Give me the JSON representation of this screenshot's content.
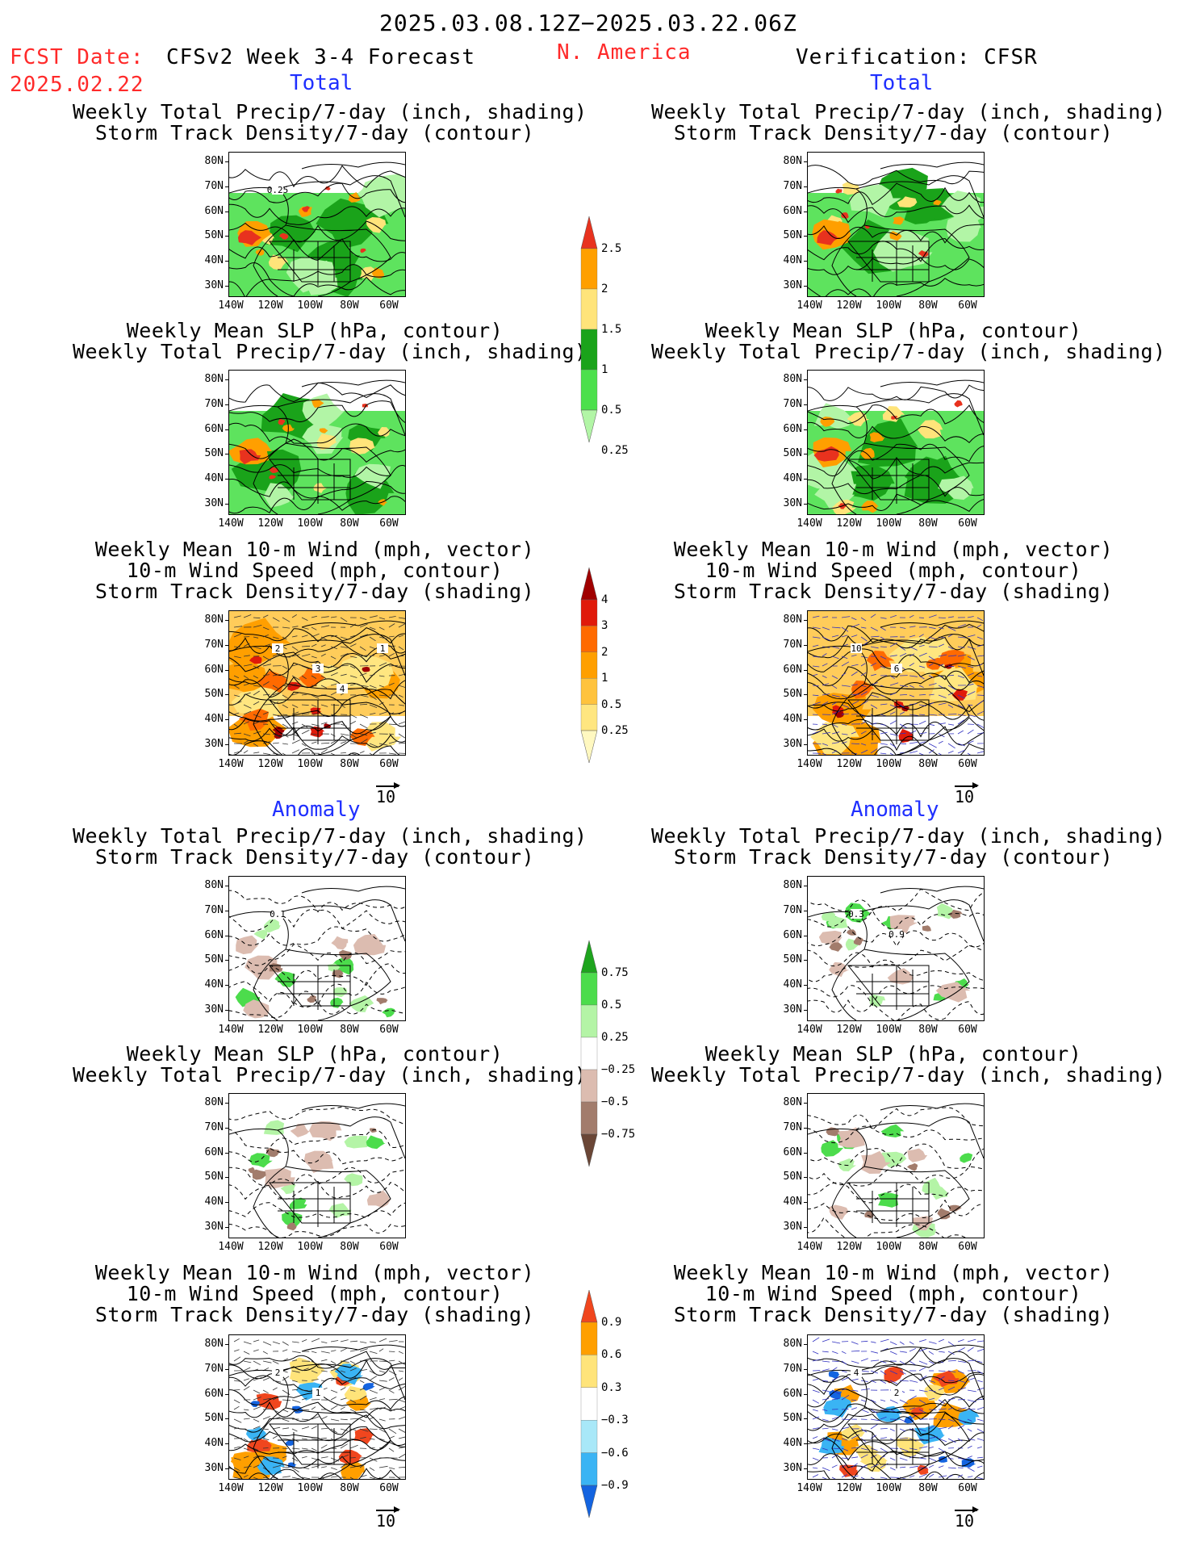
{
  "header": {
    "period": "2025.03.08.12Z−2025.03.22.06Z",
    "fcst_date_label": "FCST Date:",
    "fcst_date": "2025.02.22",
    "forecast_name": "CFSv2 Week 3-4 Forecast",
    "region": "N. America",
    "verification": "Verification: CFSR"
  },
  "sections": {
    "total": "Total",
    "anomaly": "Anomaly"
  },
  "panel_titles": {
    "precip_storm": [
      "Weekly Total Precip/7-day (inch, shading)",
      "Storm Track Density/7-day (contour)"
    ],
    "slp_precip": [
      "Weekly Mean SLP (hPa, contour)",
      "Weekly Total Precip/7-day (inch, shading)"
    ],
    "wind_storm": [
      "Weekly Mean 10-m Wind (mph, vector)",
      "10-m Wind Speed (mph, contour)",
      "Storm Track Density/7-day (shading)"
    ]
  },
  "axes": {
    "lat_ticks": [
      "80N",
      "70N",
      "60N",
      "50N",
      "40N",
      "30N"
    ],
    "lon_ticks": [
      "140W",
      "120W",
      "100W",
      "80W",
      "60W"
    ]
  },
  "vector_ref": "10",
  "colorbars": {
    "precip_total": {
      "labels": [
        "2.5",
        "2",
        "1.5",
        "1",
        "0.5",
        "0.25"
      ],
      "colors": [
        "#e8321e",
        "#ff9f00",
        "#ffe47a",
        "#1aa31a",
        "#4ce04c",
        "#b2f5a6"
      ]
    },
    "storm_total": {
      "labels": [
        "4",
        "3",
        "2",
        "1",
        "0.5",
        "0.25"
      ],
      "colors": [
        "#a00000",
        "#e01a0a",
        "#ff6a00",
        "#ff9f00",
        "#ffc33d",
        "#ffe680",
        "#fff8c0"
      ]
    },
    "precip_anom": {
      "labels": [
        "0.75",
        "0.5",
        "0.25",
        "−0.25",
        "−0.5",
        "−0.75"
      ],
      "colors": [
        "#1ea41e",
        "#4cdc4c",
        "#b4f4a6",
        "#ffffff",
        "#dcbcb0",
        "#a27c6c",
        "#6a4636"
      ]
    },
    "storm_anom": {
      "labels": [
        "0.9",
        "0.6",
        "0.3",
        "−0.3",
        "−0.6",
        "−0.9"
      ],
      "colors": [
        "#f0461e",
        "#ff9f00",
        "#ffe47a",
        "#ffffff",
        "#a8e8f8",
        "#3ab4f4",
        "#1464e0"
      ]
    }
  },
  "map_labels": {
    "fcst_total_precip": [
      "0.25"
    ],
    "fcst_total_wind": [
      "2",
      "3",
      "4",
      "1"
    ],
    "ver_total_wind": [
      "10",
      "6"
    ],
    "fcst_anom_precip": [
      "0.1"
    ],
    "ver_anom_precip": [
      "0.3",
      "0.9"
    ],
    "fcst_anom_wind": [
      "2",
      "1"
    ],
    "ver_anom_wind": [
      "4",
      "2"
    ]
  }
}
